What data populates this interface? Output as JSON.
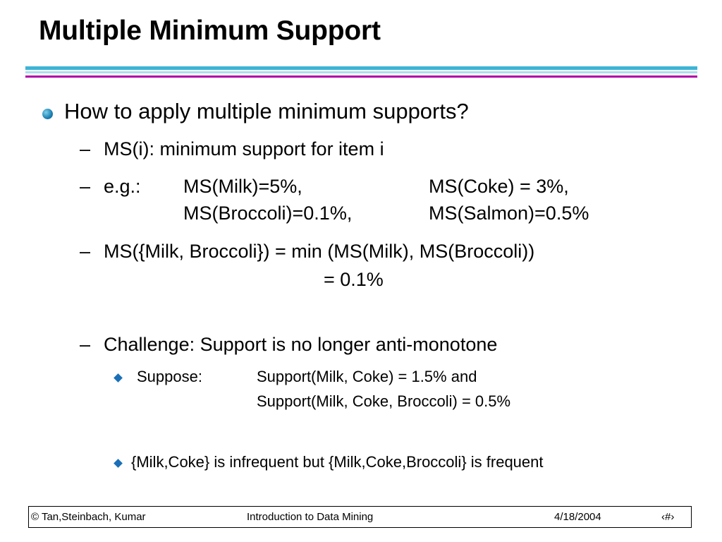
{
  "slide": {
    "title": "Multiple Minimum Support",
    "bullet1": "How to apply multiple minimum supports?",
    "sub1": "MS(i): minimum support for item i",
    "sub2": {
      "prefix": "e.g.:",
      "r1c1": "MS(Milk)=5%,",
      "r1c2": "MS(Coke) = 3%,",
      "r2c1": "MS(Broccoli)=0.1%,",
      "r2c2": "MS(Salmon)=0.5%"
    },
    "sub3": {
      "line1": "MS({Milk, Broccoli}) = min (MS(Milk), MS(Broccoli))",
      "line2": "= 0.1%"
    },
    "sub4": "Challenge: Support is no longer anti-monotone",
    "subsub1": {
      "label": "Suppose:",
      "line1": "Support(Milk, Coke) = 1.5% and",
      "line2": "Support(Milk, Coke, Broccoli) = 0.5%"
    },
    "subsub2": "{Milk,Coke} is infrequent but {Milk,Coke,Broccoli} is frequent",
    "dash": "–"
  },
  "footer": {
    "left": "© Tan,Steinbach, Kumar",
    "center": "Introduction to Data Mining",
    "date": "4/18/2004",
    "page": "‹#›"
  },
  "colors": {
    "rule_top": "#3cb4d6",
    "rule_mid": "#a8e0ee",
    "rule_bottom": "#b000a8",
    "bullet": "#1a7fb0",
    "diamond": "#1a6fb8"
  }
}
